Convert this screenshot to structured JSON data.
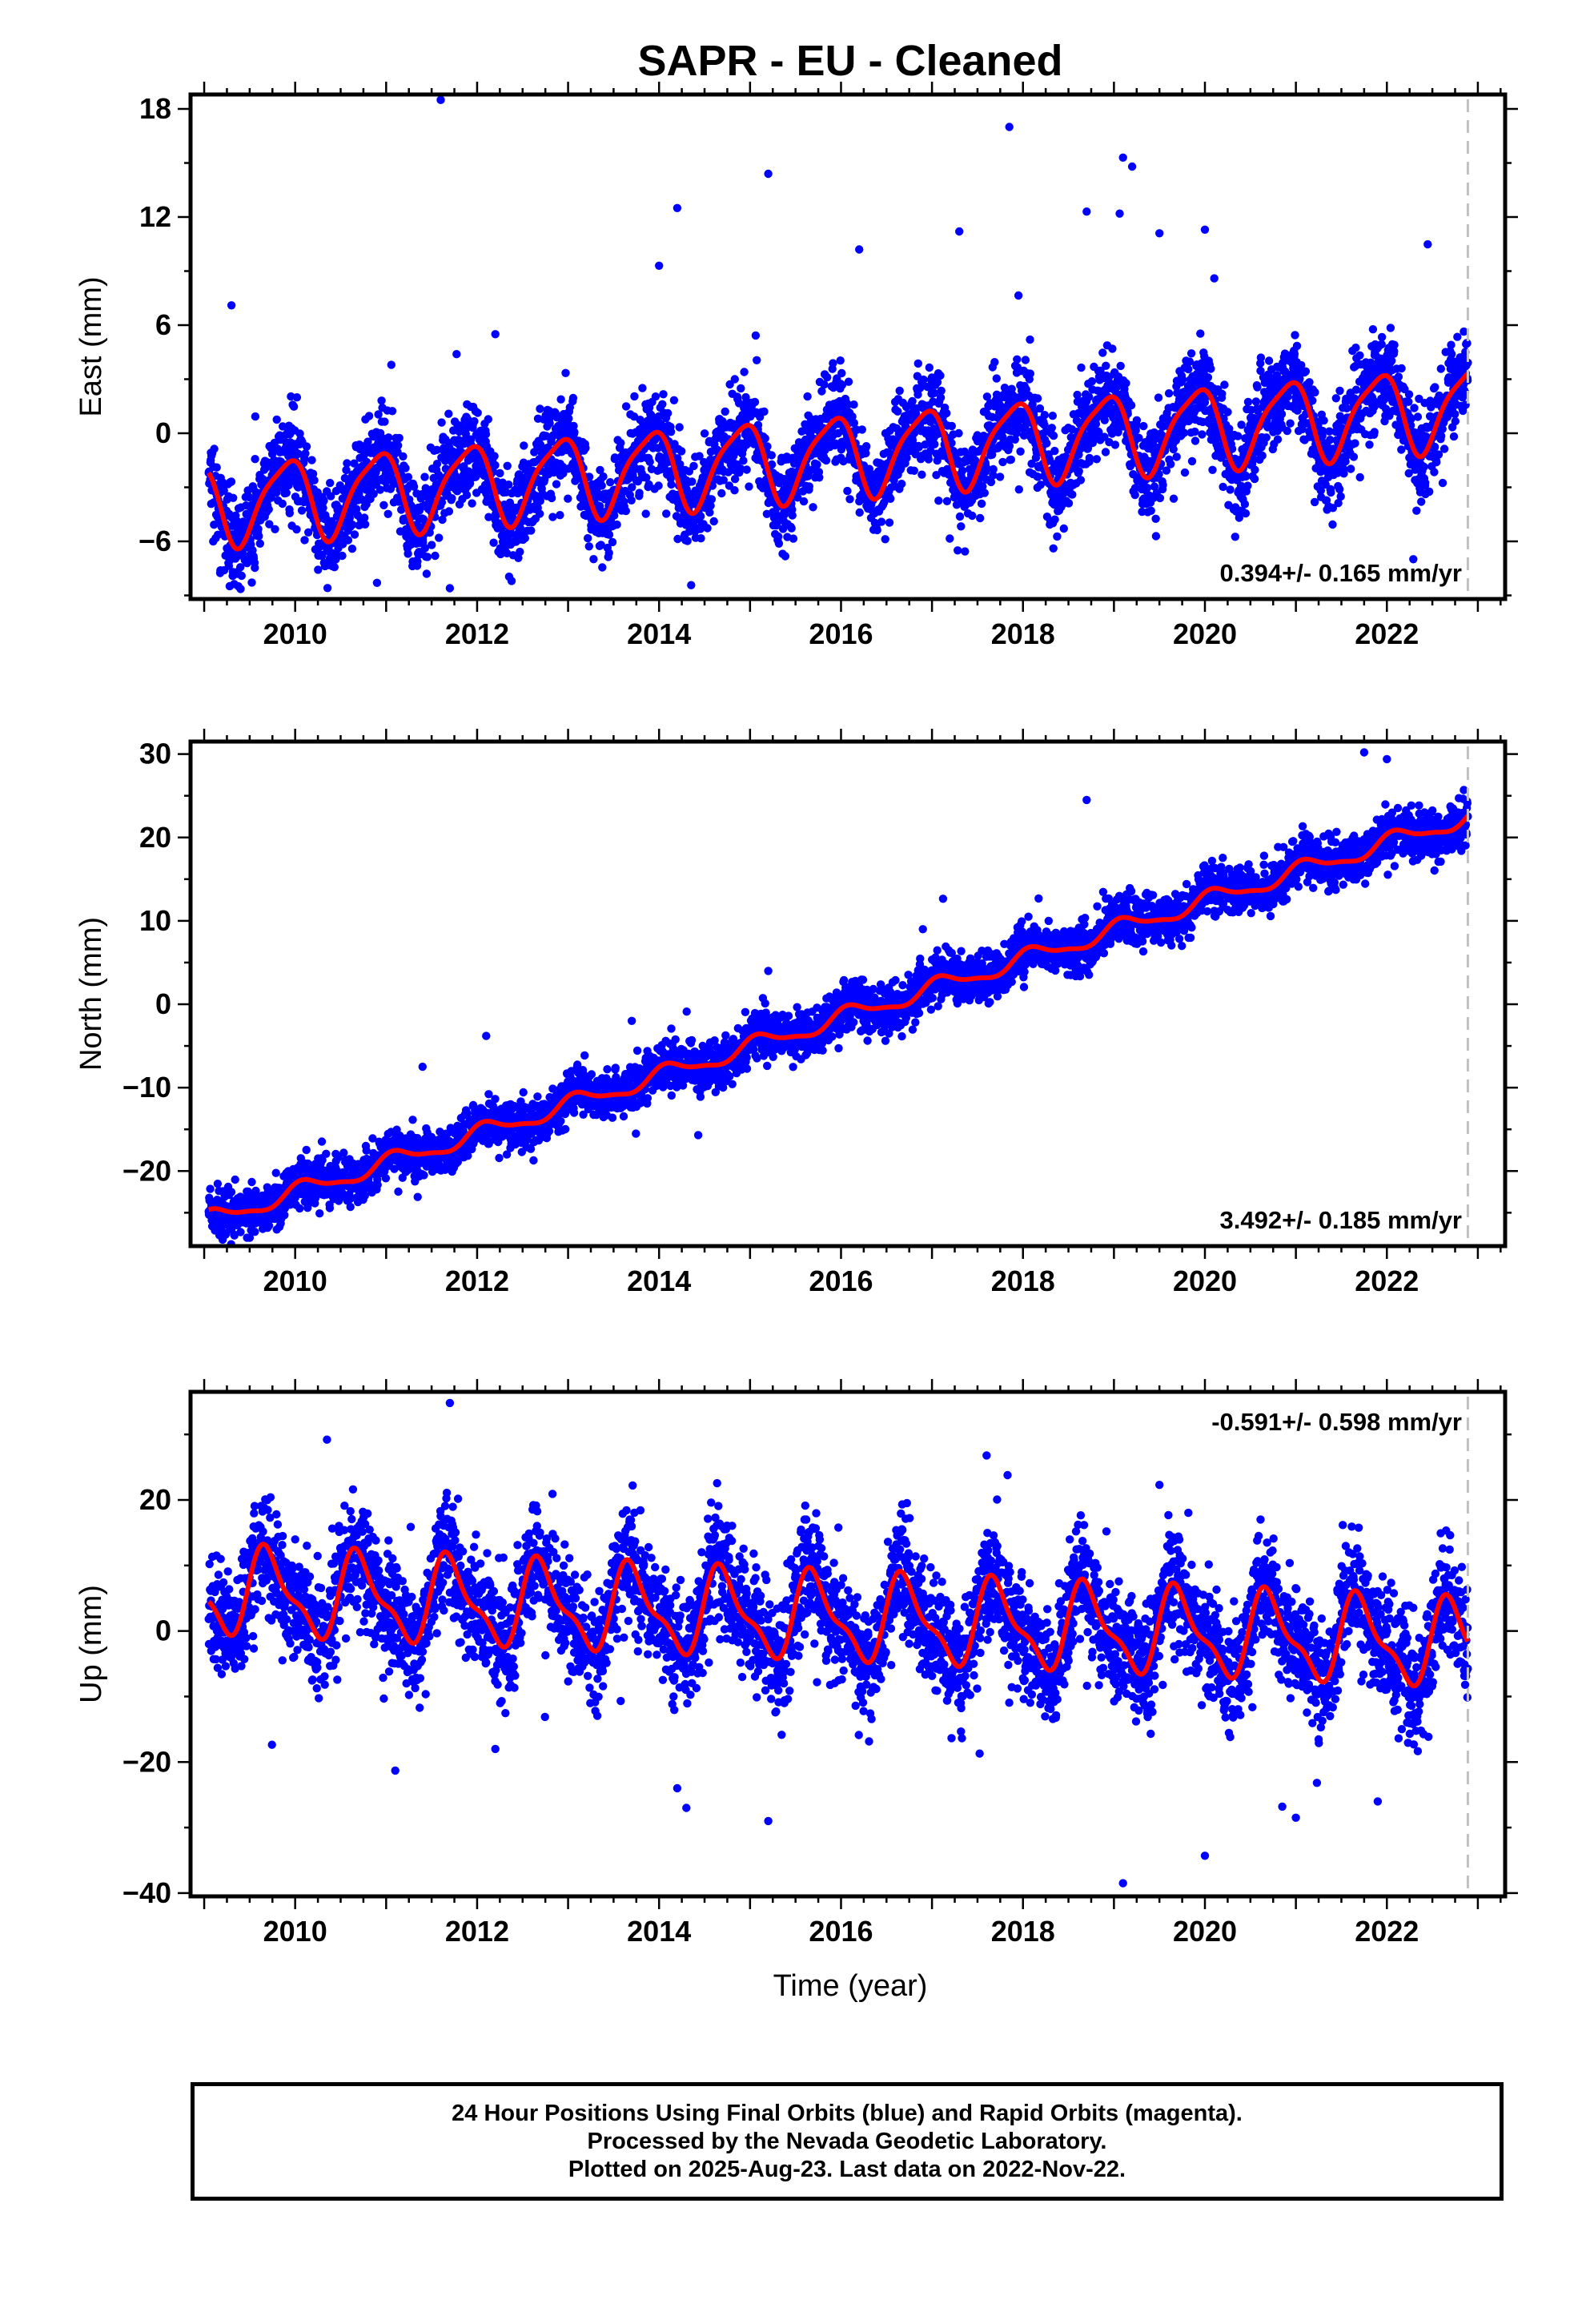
{
  "figure": {
    "title": "SAPR  - EU - Cleaned",
    "xlabel": "Time (year)"
  },
  "footer": {
    "line1": "24 Hour Positions Using Final Orbits (blue) and Rapid Orbits (magenta).",
    "line2": "Processed by the Nevada Geodetic Laboratory.",
    "line3": "Plotted on 2025-Aug-23. Last data on 2022-Nov-22."
  },
  "colors": {
    "points": "#0000ff",
    "model": "#ff0000",
    "last_data_line": "#c0c0c0",
    "frame": "#000000"
  },
  "chart_data": [
    {
      "type": "scatter",
      "ylabel": "East (mm)",
      "xlim": [
        2008.85,
        2023.3
      ],
      "ylim": [
        -9.2,
        18.8
      ],
      "x_ticks": [
        2010,
        2012,
        2014,
        2016,
        2018,
        2020,
        2022
      ],
      "y_ticks": [
        -6,
        0,
        6,
        12,
        18
      ],
      "rate_label": "0.394+/- 0.165 mm/yr",
      "last_data_marker": 2022.89,
      "series": [
        {
          "marker": "point",
          "model_params": {
            "offset": -1.2,
            "trend": 0.394,
            "ref_year": 2016,
            "annual_amp": 2.2,
            "annual_phase": 2.2,
            "semiannual_amp": 0.5,
            "semiannual_phase": 0.5
          },
          "x_range": [
            2009.05,
            2022.89
          ],
          "noise_sigma": 1.3,
          "outliers": [
            [
              2011.6,
              18.5
            ],
            [
              2017.85,
              17.0
            ],
            [
              2019.1,
              15.3
            ],
            [
              2019.2,
              14.8
            ],
            [
              2015.2,
              14.4
            ],
            [
              2014.2,
              12.5
            ],
            [
              2018.7,
              12.3
            ],
            [
              2014.0,
              9.3
            ],
            [
              2016.2,
              10.2
            ],
            [
              2017.3,
              11.2
            ],
            [
              2019.5,
              11.1
            ],
            [
              2020.0,
              11.3
            ],
            [
              2009.3,
              7.1
            ],
            [
              2010.9,
              -8.3
            ],
            [
              2011.7,
              -8.6
            ],
            [
              2012.2,
              5.5
            ]
          ]
        },
        {
          "marker": "line",
          "model": "same as points: offset + trend*(t-ref_year) + annual + semiannual"
        }
      ]
    },
    {
      "type": "scatter",
      "ylabel": "North (mm)",
      "xlim": [
        2008.85,
        2023.3
      ],
      "ylim": [
        -29.0,
        31.5
      ],
      "x_ticks": [
        2010,
        2012,
        2014,
        2016,
        2018,
        2020,
        2022
      ],
      "y_ticks": [
        -20,
        -10,
        0,
        10,
        20,
        30
      ],
      "rate_label": "3.492+/- 0.185 mm/yr",
      "last_data_marker": 2022.89,
      "series": [
        {
          "marker": "point",
          "model_params": {
            "offset": -1.6,
            "trend": 3.492,
            "ref_year": 2016,
            "annual_amp": 1.0,
            "annual_phase": 0.9,
            "semiannual_amp": 0.3,
            "semiannual_phase": 1.2
          },
          "x_range": [
            2009.05,
            2022.89
          ],
          "noise_sigma": 1.4,
          "outliers": [
            [
              2021.75,
              30.2
            ],
            [
              2022.0,
              29.4
            ],
            [
              2018.7,
              24.5
            ],
            [
              2009.5,
              -28.0
            ],
            [
              2011.4,
              -7.5
            ],
            [
              2013.7,
              -2.0
            ],
            [
              2015.2,
              4.0
            ],
            [
              2016.9,
              9.0
            ],
            [
              2012.1,
              -3.8
            ]
          ]
        },
        {
          "marker": "line",
          "model": "same as points: offset + trend*(t-ref_year) + annual + semiannual"
        }
      ]
    },
    {
      "type": "scatter",
      "ylabel": "Up (mm)",
      "xlim": [
        2008.85,
        2023.3
      ],
      "ylim": [
        -40.5,
        36.5
      ],
      "x_ticks": [
        2010,
        2012,
        2014,
        2016,
        2018,
        2020,
        2022
      ],
      "y_ticks": [
        -40,
        -20,
        0,
        20
      ],
      "rate_label": "-0.591+/- 0.598 mm/yr",
      "last_data_marker": 2022.89,
      "series": [
        {
          "marker": "point",
          "model_params": {
            "offset": 2.0,
            "trend": -0.591,
            "ref_year": 2016,
            "annual_amp": 6.0,
            "annual_phase": 3.4,
            "semiannual_amp": 2.2,
            "semiannual_phase": 0.2
          },
          "x_range": [
            2009.05,
            2022.89
          ],
          "noise_sigma": 4.3,
          "outliers": [
            [
              2011.7,
              34.8
            ],
            [
              2010.35,
              29.2
            ],
            [
              2017.6,
              26.8
            ],
            [
              2019.5,
              22.3
            ],
            [
              2019.1,
              -38.5
            ],
            [
              2020.0,
              -34.3
            ],
            [
              2015.2,
              -29.0
            ],
            [
              2014.3,
              -27.0
            ],
            [
              2021.0,
              -28.5
            ],
            [
              2020.85,
              -26.8
            ],
            [
              2011.1,
              -21.3
            ],
            [
              2012.2,
              -18.0
            ],
            [
              2021.9,
              -26.0
            ],
            [
              2014.2,
              -24.0
            ]
          ]
        },
        {
          "marker": "line",
          "model": "same as points: offset + trend*(t-ref_year) + annual + semiannual"
        }
      ]
    }
  ]
}
